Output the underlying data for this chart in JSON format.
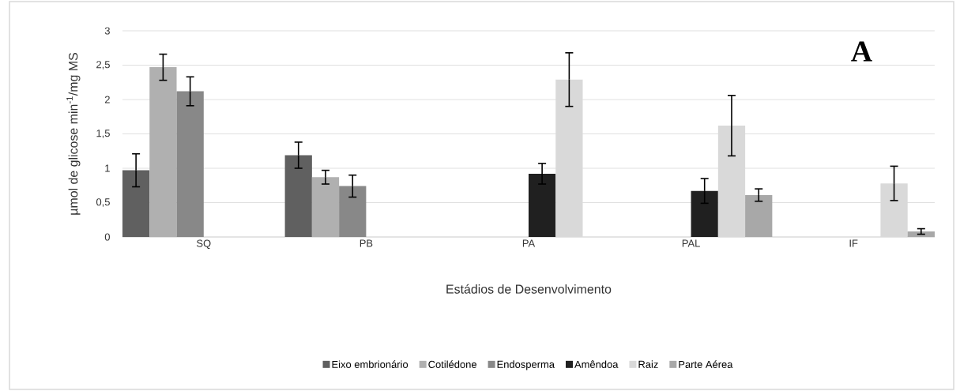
{
  "chart_data": {
    "type": "bar",
    "xlabel": "Estádios de Desenvolvimento",
    "ylabel": "µmol de glicose min$^{-1}$/mg MS",
    "categories": [
      "SQ",
      "PB",
      "PA",
      "PAL",
      "IF"
    ],
    "series": [
      {
        "name": "Eixo embrionário",
        "color": "#606060",
        "values": [
          0.97,
          1.19,
          null,
          null,
          null
        ],
        "errors": [
          0.24,
          0.19,
          null,
          null,
          null
        ]
      },
      {
        "name": "Cotilédone",
        "color": "#b0b0b0",
        "values": [
          2.47,
          0.87,
          null,
          null,
          null
        ],
        "errors": [
          0.19,
          0.1,
          null,
          null,
          null
        ]
      },
      {
        "name": "Endosperma",
        "color": "#888888",
        "values": [
          2.12,
          0.74,
          null,
          null,
          null
        ],
        "errors": [
          0.21,
          0.16,
          null,
          null,
          null
        ]
      },
      {
        "name": "Amêndoa",
        "color": "#202020",
        "values": [
          null,
          null,
          0.92,
          0.67,
          null
        ],
        "errors": [
          null,
          null,
          0.15,
          0.18,
          null
        ]
      },
      {
        "name": "Raiz",
        "color": "#d9d9d9",
        "values": [
          null,
          null,
          2.29,
          1.62,
          0.78
        ],
        "errors": [
          null,
          null,
          0.39,
          0.44,
          0.25
        ]
      },
      {
        "name": "Parte Aérea",
        "color": "#a8a8a8",
        "values": [
          null,
          null,
          null,
          0.61,
          0.08
        ],
        "errors": [
          null,
          null,
          null,
          0.09,
          0.04
        ]
      }
    ],
    "ylim": [
      0,
      3
    ],
    "yticks": [
      0,
      {
        "value": 0.5,
        "label": "0,5"
      },
      1,
      {
        "value": 1.5,
        "label": "1,5"
      },
      2,
      {
        "value": 2.5,
        "label": "2,5"
      },
      3
    ],
    "grid": "y",
    "legend": "bottom",
    "annotations": [
      "A"
    ]
  }
}
